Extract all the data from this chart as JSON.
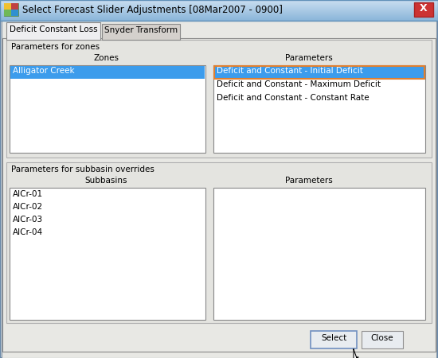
{
  "title": "Select Forecast Slider Adjustments [08Mar2007 - 0900]",
  "tab1": "Deficit Constant Loss",
  "tab2": "Snyder Transform",
  "zones_label": "Parameters for zones",
  "zones_col": "Zones",
  "params_col": "Parameters",
  "zone_items": [
    "Alligator Creek"
  ],
  "param_items": [
    "Deficit and Constant - Initial Deficit",
    "Deficit and Constant - Maximum Deficit",
    "Deficit and Constant - Constant Rate"
  ],
  "subbasin_label": "Parameters for subbasin overrides",
  "subbasins_col": "Subbasins",
  "subparams_col": "Parameters",
  "subbasin_items": [
    "AlCr-01",
    "AlCr-02",
    "AlCr-03",
    "AlCr-04"
  ],
  "btn_select": "Select",
  "btn_close": "Close",
  "dialog_outer_bg": "#c8d0d8",
  "dialog_inner_bg": "#e8e8e4",
  "titlebar_top": "#c8ddf0",
  "titlebar_bottom": "#88b4d8",
  "selected_blue": "#3c9cec",
  "selected_param_border": "#e08030",
  "list_bg": "#ffffff",
  "tab_active_bg": "#eeeef0",
  "tab_inactive_bg": "#d4d0cc",
  "section_bg": "#e4e4e0",
  "border_light": "#b0b0b0",
  "border_dark": "#888888",
  "text_color": "#000000",
  "close_btn_bg": "#cc3333",
  "close_btn_border": "#aa2222",
  "btn_bg": "#e8ecf0",
  "btn_border_select": "#7090c0",
  "btn_border_close": "#909090",
  "font_size": 7.5,
  "title_font_size": 8.5
}
